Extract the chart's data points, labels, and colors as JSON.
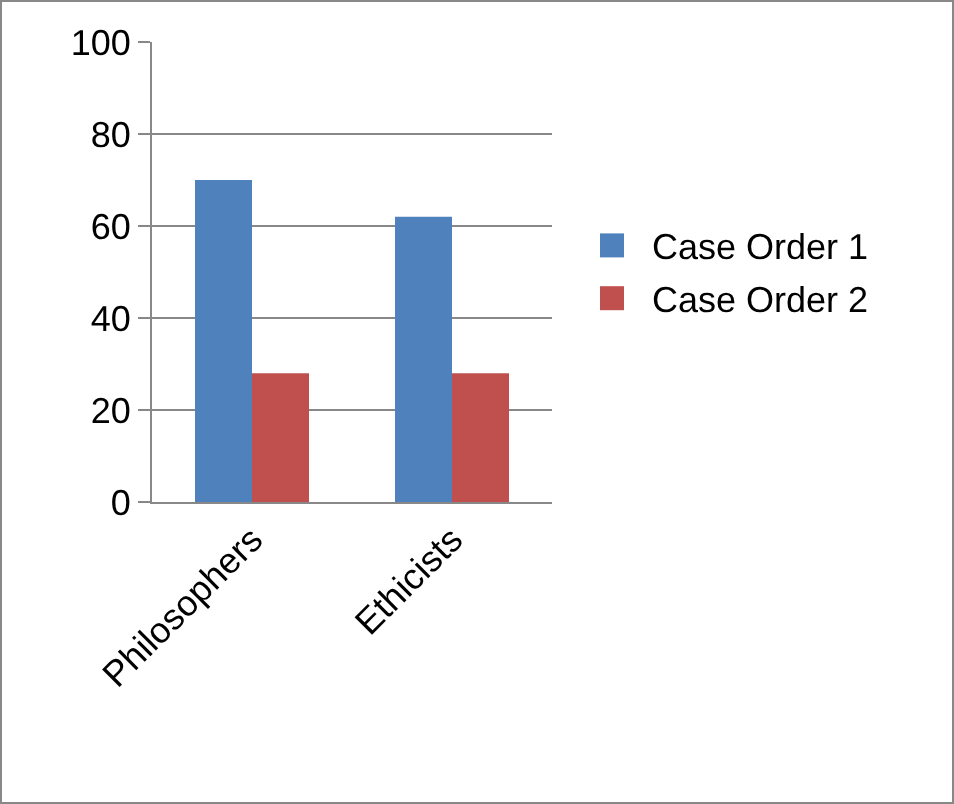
{
  "chart_data": {
    "type": "bar",
    "categories": [
      "Philosophers",
      "Ethicists"
    ],
    "series": [
      {
        "name": "Case Order 1",
        "color": "#4f81bd",
        "values": [
          70,
          62
        ]
      },
      {
        "name": "Case Order 2",
        "color": "#c0504d",
        "values": [
          28,
          28
        ]
      }
    ],
    "ylim": [
      0,
      100
    ],
    "yticks": [
      0,
      20,
      40,
      60,
      80,
      100
    ],
    "grid": "y",
    "legend": "right"
  }
}
